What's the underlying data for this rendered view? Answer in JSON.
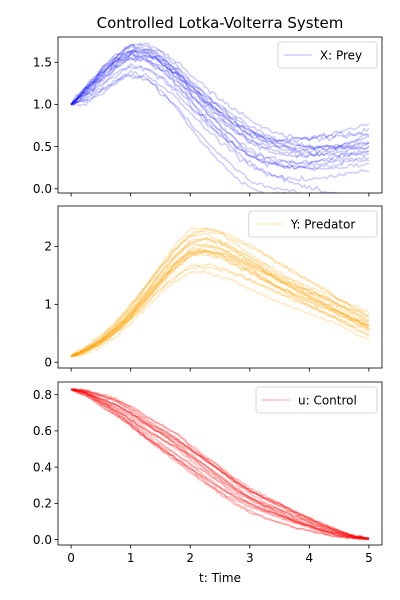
{
  "chart_data": {
    "title": "Controlled Lotka-Volterra System",
    "xlabel": "t: Time",
    "xlim": [
      -0.22,
      5.22
    ],
    "xticks": [
      0,
      1,
      2,
      3,
      4,
      5
    ],
    "grid": false,
    "panels": [
      {
        "type": "line",
        "series_name": "X: Prey",
        "color": "#0000ff",
        "opacity": 0.2,
        "legend_position": "upper-right",
        "ylim": [
          -0.05,
          1.8
        ],
        "yticks": [
          0.0,
          0.5,
          1.0,
          1.5
        ],
        "x": [
          0,
          0.25,
          0.5,
          0.75,
          1.0,
          1.25,
          1.5,
          1.75,
          2.0,
          2.25,
          2.5,
          2.75,
          3.0,
          3.25,
          3.5,
          3.75,
          4.0,
          4.25,
          4.5,
          4.75,
          5.0
        ],
        "mean": [
          1.0,
          1.15,
          1.32,
          1.47,
          1.57,
          1.55,
          1.45,
          1.3,
          1.12,
          0.95,
          0.8,
          0.67,
          0.55,
          0.47,
          0.42,
          0.39,
          0.37,
          0.37,
          0.38,
          0.4,
          0.42
        ],
        "spread": [
          0.0,
          0.05,
          0.07,
          0.08,
          0.09,
          0.1,
          0.11,
          0.12,
          0.13,
          0.14,
          0.15,
          0.16,
          0.17,
          0.17,
          0.17,
          0.18,
          0.19,
          0.2,
          0.21,
          0.22,
          0.24
        ],
        "n_traj": 20
      },
      {
        "type": "line",
        "series_name": "Y: Predator",
        "color": "#ffa500",
        "opacity": 0.25,
        "legend_position": "upper-right",
        "ylim": [
          -0.1,
          2.7
        ],
        "yticks": [
          0,
          1,
          2
        ],
        "x": [
          0,
          0.25,
          0.5,
          0.75,
          1.0,
          1.25,
          1.5,
          1.75,
          2.0,
          2.25,
          2.5,
          2.75,
          3.0,
          3.25,
          3.5,
          3.75,
          4.0,
          4.25,
          4.5,
          4.75,
          5.0
        ],
        "mean": [
          0.1,
          0.2,
          0.35,
          0.55,
          0.8,
          1.1,
          1.4,
          1.68,
          1.9,
          1.95,
          1.9,
          1.78,
          1.65,
          1.5,
          1.35,
          1.22,
          1.1,
          0.98,
          0.85,
          0.72,
          0.6
        ],
        "spread": [
          0.0,
          0.03,
          0.05,
          0.07,
          0.1,
          0.13,
          0.16,
          0.2,
          0.22,
          0.23,
          0.22,
          0.2,
          0.19,
          0.18,
          0.17,
          0.17,
          0.17,
          0.17,
          0.16,
          0.16,
          0.15
        ],
        "n_traj": 20
      },
      {
        "type": "line",
        "series_name": "u: Control",
        "color": "#ff0000",
        "opacity": 0.25,
        "legend_position": "upper-right",
        "ylim": [
          -0.03,
          0.87
        ],
        "yticks": [
          0.0,
          0.2,
          0.4,
          0.6,
          0.8
        ],
        "x": [
          0,
          0.25,
          0.5,
          0.75,
          1.0,
          1.25,
          1.5,
          1.75,
          2.0,
          2.25,
          2.5,
          2.75,
          3.0,
          3.25,
          3.5,
          3.75,
          4.0,
          4.25,
          4.5,
          4.75,
          5.0
        ],
        "mean": [
          0.83,
          0.81,
          0.77,
          0.73,
          0.68,
          0.62,
          0.57,
          0.52,
          0.46,
          0.4,
          0.34,
          0.28,
          0.23,
          0.19,
          0.155,
          0.12,
          0.09,
          0.06,
          0.035,
          0.015,
          0.005
        ],
        "spread": [
          0.0,
          0.01,
          0.02,
          0.03,
          0.035,
          0.04,
          0.045,
          0.05,
          0.05,
          0.05,
          0.05,
          0.045,
          0.04,
          0.035,
          0.03,
          0.025,
          0.02,
          0.015,
          0.01,
          0.005,
          0.0
        ],
        "n_traj": 20
      }
    ]
  }
}
